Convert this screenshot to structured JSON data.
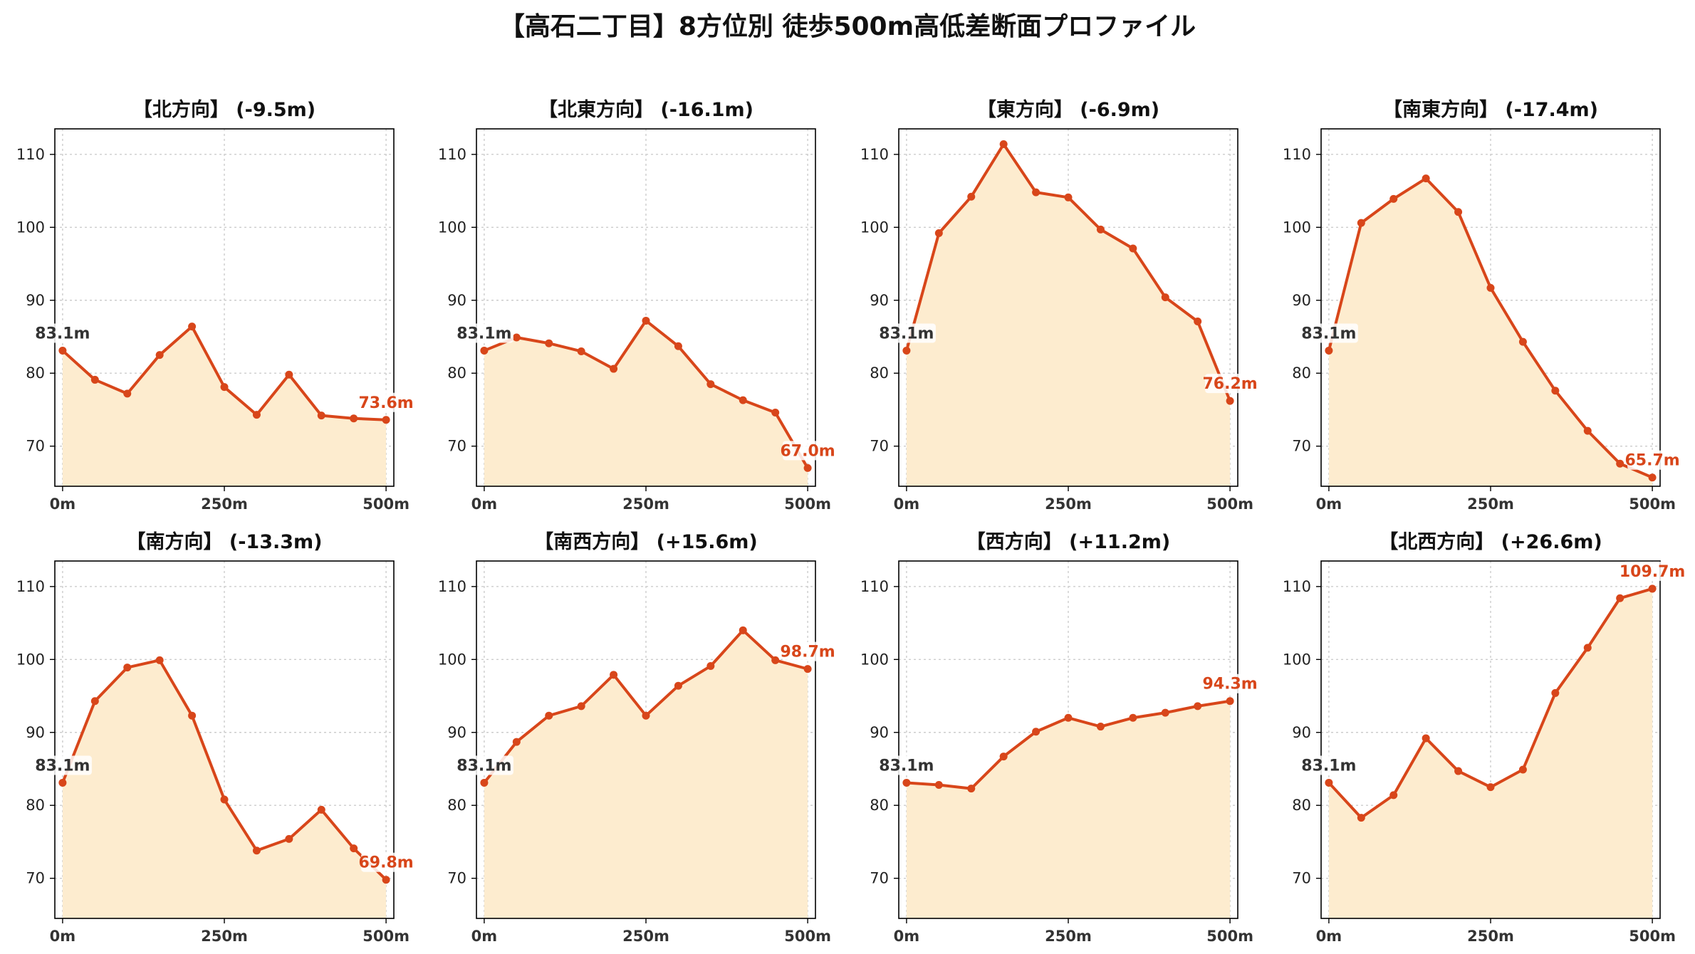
{
  "title": "【高石二丁目】8方位別 徒歩500m高低差断面プロファイル",
  "colors": {
    "line": "#d8461a",
    "fill": "#fdeccf",
    "start_label": "#333333",
    "end_label": "#d8461a",
    "grid": "#cccccc"
  },
  "chart_data": [
    {
      "type": "area",
      "title": "【北方向】 (-9.5m)",
      "x": [
        0,
        50,
        100,
        150,
        200,
        250,
        300,
        350,
        400,
        450,
        500
      ],
      "x_ticks": [
        "0m",
        "250m",
        "500m"
      ],
      "x_tick_values": [
        0,
        250,
        500
      ],
      "y_ticks": [
        70,
        80,
        90,
        100,
        110
      ],
      "ylim": [
        64.5,
        113.5
      ],
      "xlim": [
        -12,
        512
      ],
      "grid": true,
      "values": [
        83.1,
        79.1,
        77.2,
        82.5,
        86.4,
        78.1,
        74.3,
        79.8,
        74.2,
        73.8,
        73.6
      ],
      "start_label": "83.1m",
      "end_label": "73.6m"
    },
    {
      "type": "area",
      "title": "【北東方向】 (-16.1m)",
      "x": [
        0,
        50,
        100,
        150,
        200,
        250,
        300,
        350,
        400,
        450,
        500
      ],
      "x_ticks": [
        "0m",
        "250m",
        "500m"
      ],
      "x_tick_values": [
        0,
        250,
        500
      ],
      "y_ticks": [
        70,
        80,
        90,
        100,
        110
      ],
      "ylim": [
        64.5,
        113.5
      ],
      "xlim": [
        -12,
        512
      ],
      "grid": true,
      "values": [
        83.1,
        84.9,
        84.1,
        83.0,
        80.6,
        87.2,
        83.7,
        78.5,
        76.3,
        74.6,
        67.0
      ],
      "start_label": "83.1m",
      "end_label": "67.0m"
    },
    {
      "type": "area",
      "title": "【東方向】 (-6.9m)",
      "x": [
        0,
        50,
        100,
        150,
        200,
        250,
        300,
        350,
        400,
        450,
        500
      ],
      "x_ticks": [
        "0m",
        "250m",
        "500m"
      ],
      "x_tick_values": [
        0,
        250,
        500
      ],
      "y_ticks": [
        70,
        80,
        90,
        100,
        110
      ],
      "ylim": [
        64.5,
        113.5
      ],
      "xlim": [
        -12,
        512
      ],
      "grid": true,
      "values": [
        83.1,
        99.2,
        104.2,
        111.4,
        104.8,
        104.1,
        99.7,
        97.1,
        90.4,
        87.1,
        76.2
      ],
      "start_label": "83.1m",
      "end_label": "76.2m"
    },
    {
      "type": "area",
      "title": "【南東方向】 (-17.4m)",
      "x": [
        0,
        50,
        100,
        150,
        200,
        250,
        300,
        350,
        400,
        450,
        500
      ],
      "x_ticks": [
        "0m",
        "250m",
        "500m"
      ],
      "x_tick_values": [
        0,
        250,
        500
      ],
      "y_ticks": [
        70,
        80,
        90,
        100,
        110
      ],
      "ylim": [
        64.5,
        113.5
      ],
      "xlim": [
        -12,
        512
      ],
      "grid": true,
      "values": [
        83.1,
        100.6,
        103.9,
        106.7,
        102.1,
        91.7,
        84.3,
        77.6,
        72.1,
        67.6,
        65.7
      ],
      "start_label": "83.1m",
      "end_label": "65.7m"
    },
    {
      "type": "area",
      "title": "【南方向】 (-13.3m)",
      "x": [
        0,
        50,
        100,
        150,
        200,
        250,
        300,
        350,
        400,
        450,
        500
      ],
      "x_ticks": [
        "0m",
        "250m",
        "500m"
      ],
      "x_tick_values": [
        0,
        250,
        500
      ],
      "y_ticks": [
        70,
        80,
        90,
        100,
        110
      ],
      "ylim": [
        64.5,
        113.5
      ],
      "xlim": [
        -12,
        512
      ],
      "grid": true,
      "values": [
        83.1,
        94.3,
        98.9,
        99.9,
        92.3,
        80.8,
        73.8,
        75.4,
        79.4,
        74.1,
        69.8
      ],
      "start_label": "83.1m",
      "end_label": "69.8m"
    },
    {
      "type": "area",
      "title": "【南西方向】 (+15.6m)",
      "x": [
        0,
        50,
        100,
        150,
        200,
        250,
        300,
        350,
        400,
        450,
        500
      ],
      "x_ticks": [
        "0m",
        "250m",
        "500m"
      ],
      "x_tick_values": [
        0,
        250,
        500
      ],
      "y_ticks": [
        70,
        80,
        90,
        100,
        110
      ],
      "ylim": [
        64.5,
        113.5
      ],
      "xlim": [
        -12,
        512
      ],
      "grid": true,
      "values": [
        83.1,
        88.7,
        92.3,
        93.6,
        97.9,
        92.3,
        96.4,
        99.1,
        104.0,
        99.9,
        98.7
      ],
      "start_label": "83.1m",
      "end_label": "98.7m"
    },
    {
      "type": "area",
      "title": "【西方向】 (+11.2m)",
      "x": [
        0,
        50,
        100,
        150,
        200,
        250,
        300,
        350,
        400,
        450,
        500
      ],
      "x_ticks": [
        "0m",
        "250m",
        "500m"
      ],
      "x_tick_values": [
        0,
        250,
        500
      ],
      "y_ticks": [
        70,
        80,
        90,
        100,
        110
      ],
      "ylim": [
        64.5,
        113.5
      ],
      "xlim": [
        -12,
        512
      ],
      "grid": true,
      "values": [
        83.1,
        82.8,
        82.3,
        86.7,
        90.1,
        92.0,
        90.8,
        92.0,
        92.7,
        93.6,
        94.3
      ],
      "start_label": "83.1m",
      "end_label": "94.3m"
    },
    {
      "type": "area",
      "title": "【北西方向】 (+26.6m)",
      "x": [
        0,
        50,
        100,
        150,
        200,
        250,
        300,
        350,
        400,
        450,
        500
      ],
      "x_ticks": [
        "0m",
        "250m",
        "500m"
      ],
      "x_tick_values": [
        0,
        250,
        500
      ],
      "y_ticks": [
        70,
        80,
        90,
        100,
        110
      ],
      "ylim": [
        64.5,
        113.5
      ],
      "xlim": [
        -12,
        512
      ],
      "grid": true,
      "values": [
        83.1,
        78.3,
        81.4,
        89.2,
        84.7,
        82.5,
        84.9,
        95.4,
        101.6,
        108.4,
        109.7
      ],
      "start_label": "83.1m",
      "end_label": "109.7m"
    }
  ]
}
